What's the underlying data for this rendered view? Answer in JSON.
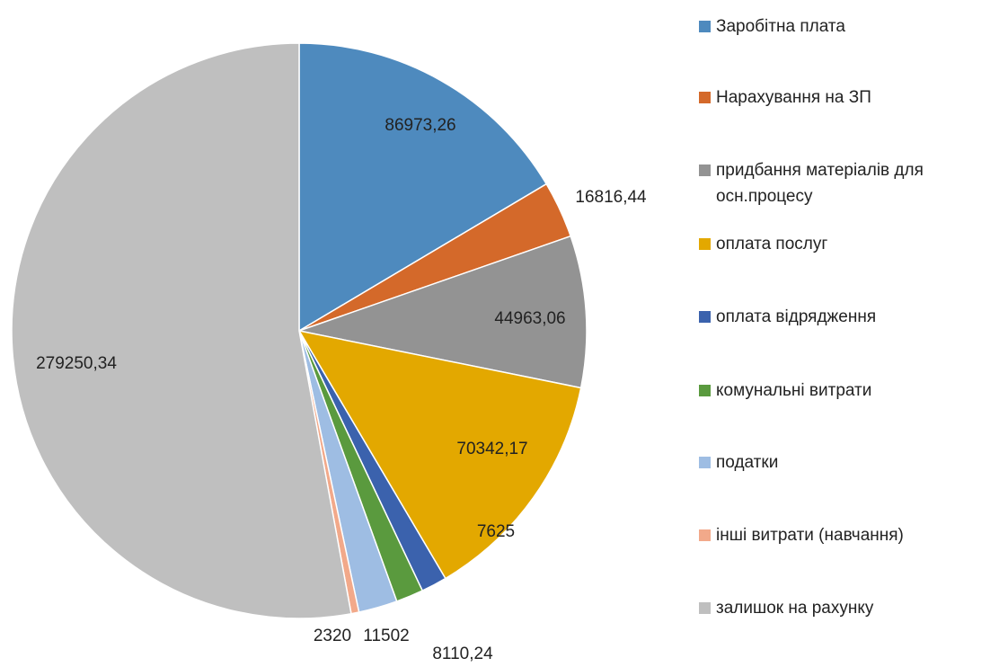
{
  "chart_data": {
    "type": "pie",
    "categories": [
      "Заробітна плата",
      "Нарахування на ЗП",
      "придбання матеріалів для осн.процесу",
      "оплата послуг",
      "оплата відрядження",
      "комунальні витрати",
      "податки",
      "інші витрати (навчання)",
      "залишок на рахунку"
    ],
    "values": [
      86973.26,
      16816.44,
      44963.06,
      70342.17,
      7625,
      8110.24,
      11502,
      2320,
      279250.34
    ],
    "value_labels": [
      "86973,26",
      "16816,44",
      "44963,06",
      "70342,17",
      "7625",
      "8110,24",
      "11502",
      "2320",
      "279250,34"
    ],
    "colors": [
      "#4e8abe",
      "#d4692a",
      "#939393",
      "#e3a800",
      "#3b62ad",
      "#5a9a3e",
      "#9ebde3",
      "#f2a98a",
      "#bfbfbf"
    ],
    "legend": "right"
  }
}
